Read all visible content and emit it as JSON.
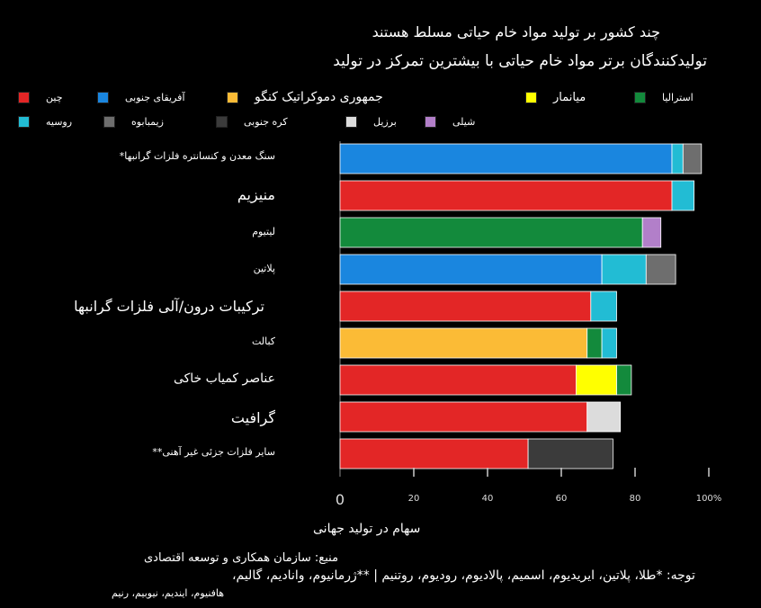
{
  "titles": {
    "title": "چند کشور بر تولید مواد خام حیاتی مسلط هستند",
    "subtitle": "تولیدکنندگان برتر مواد خام حیاتی با بیشترین تمرکز در تولید"
  },
  "legend": [
    {
      "label": "چین",
      "color": "#e32626"
    },
    {
      "label": "آفریقای جنوبی",
      "color": "#1a86df"
    },
    {
      "label": "جمهوری دموکراتیک کنگو",
      "color": "#fbbb36"
    },
    {
      "label": "میانمار",
      "color": "#ffff00"
    },
    {
      "label": "استرالیا",
      "color": "#138a3c"
    },
    {
      "label": "روسیه",
      "color": "#22bcd4"
    },
    {
      "label": "زیمبابوه",
      "color": "#6e6e6e"
    },
    {
      "label": "کره جنوبی",
      "color": "#3b3b3b"
    },
    {
      "label": "برزیل",
      "color": "#dcdcdc"
    },
    {
      "label": "شیلی",
      "color": "#b27fc9"
    }
  ],
  "chart_data": {
    "type": "bar",
    "orientation": "horizontal",
    "stacked": true,
    "categories": [
      "سنگ معدن و کنسانتره فلزات گرانبها*",
      "منیزیم",
      "لیتیوم",
      "پلاتین",
      "ترکیبات درون/آلی فلزات گرانبها",
      "کبالت",
      "عناصر کمیاب خاکی",
      "گرافیت",
      "سایر فلزات جزئی غیر آهنی**"
    ],
    "bars": [
      [
        {
          "country": "آفریقای جنوبی",
          "value": 90
        },
        {
          "country": "روسیه",
          "value": 3
        },
        {
          "country": "زیمبابوه",
          "value": 5
        }
      ],
      [
        {
          "country": "چین",
          "value": 90
        },
        {
          "country": "روسیه",
          "value": 6
        }
      ],
      [
        {
          "country": "استرالیا",
          "value": 82
        },
        {
          "country": "شیلی",
          "value": 5
        }
      ],
      [
        {
          "country": "آفریقای جنوبی",
          "value": 71
        },
        {
          "country": "روسیه",
          "value": 12
        },
        {
          "country": "زیمبابوه",
          "value": 8
        }
      ],
      [
        {
          "country": "چین",
          "value": 68
        },
        {
          "country": "روسیه",
          "value": 7
        }
      ],
      [
        {
          "country": "جمهوری دموکراتیک کنگو",
          "value": 67
        },
        {
          "country": "استرالیا",
          "value": 4
        },
        {
          "country": "روسیه",
          "value": 4
        }
      ],
      [
        {
          "country": "چین",
          "value": 64
        },
        {
          "country": "میانمار",
          "value": 11
        },
        {
          "country": "استرالیا",
          "value": 4
        }
      ],
      [
        {
          "country": "چین",
          "value": 67
        },
        {
          "country": "برزیل",
          "value": 9
        }
      ],
      [
        {
          "country": "چین",
          "value": 51
        },
        {
          "country": "کره جنوبی",
          "value": 23
        }
      ]
    ],
    "xticks": [
      "0",
      "20",
      "40",
      "60",
      "80",
      "100%"
    ],
    "xlim": [
      0,
      100
    ],
    "xlabel": "سهام در تولید جهانی"
  },
  "footer": {
    "source": "منبع: سازمان همکاری و توسعه اقتصادی",
    "note_line1": "توجه: *طلا، پلاتین، ایریدیوم، اسمیم، پالادیوم، رودیوم، روتنیم | **ژرمانیوم، وانادیم، گالیم،",
    "note_line2": "هافنیوم، ایندیم، نیوبیم، رنیم"
  }
}
